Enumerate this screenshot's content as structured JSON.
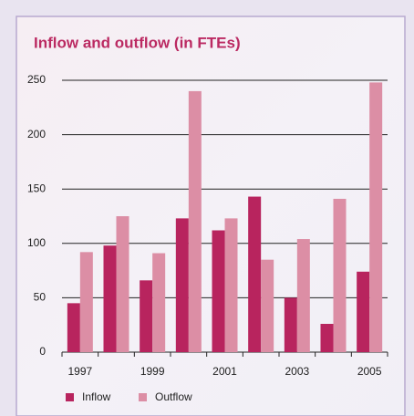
{
  "chart_data": {
    "type": "bar",
    "title": "Inflow and outflow (in FTEs)",
    "categories": [
      "1997",
      null,
      "1999",
      null,
      "2001",
      null,
      "2003",
      null,
      "2005"
    ],
    "series": [
      {
        "name": "Inflow",
        "color": "#b8245e",
        "values": [
          45,
          98,
          66,
          123,
          112,
          143,
          50,
          26,
          74
        ]
      },
      {
        "name": "Outflow",
        "color": "#dc8ea5",
        "values": [
          92,
          125,
          91,
          240,
          123,
          85,
          104,
          141,
          248
        ]
      }
    ],
    "ylim": [
      0,
      250
    ],
    "yticks": [
      0,
      50,
      100,
      150,
      200,
      250
    ],
    "grid": true
  }
}
